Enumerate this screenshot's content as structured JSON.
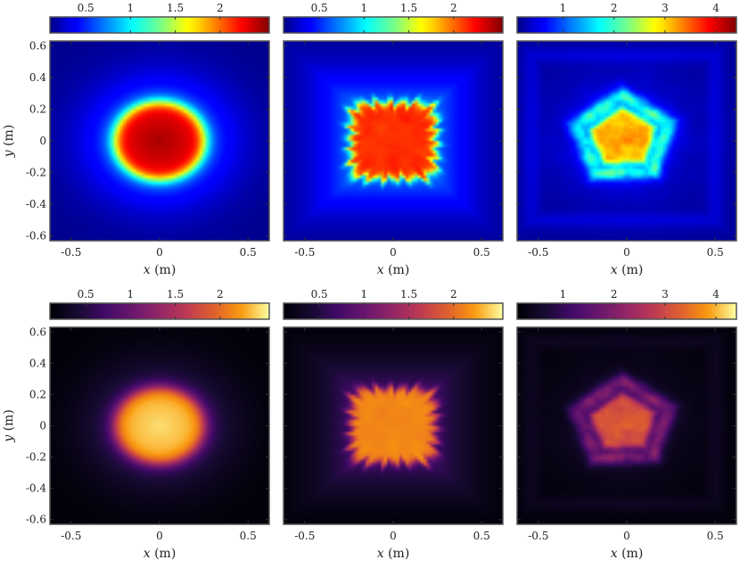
{
  "chart_data": [
    {
      "type": "heatmap",
      "colormap": "jet",
      "colorbar": {
        "min": 0.1,
        "max": 2.55,
        "ticks": [
          0.5,
          1,
          1.5,
          2
        ],
        "tick_labels": [
          "0.5",
          "1",
          "1.5",
          "2"
        ]
      },
      "xlabel": "x (m)",
      "ylabel": "y (m)",
      "xlim": [
        -0.62,
        0.62
      ],
      "ylim": [
        -0.63,
        0.63
      ],
      "xticks": [
        -0.5,
        0,
        0.5
      ],
      "xtick_labels": [
        "-0.5",
        "0",
        "0.5"
      ],
      "yticks": [
        -0.6,
        -0.4,
        -0.2,
        0,
        0.2,
        0.4,
        0.6
      ],
      "ytick_labels": [
        "-0.6",
        "-0.4",
        "-0.2",
        "0",
        "0.2",
        "0.4",
        "0.6"
      ],
      "field": {
        "shape": "round",
        "center": [
          0.0,
          0.0
        ],
        "radius": 0.25,
        "peak": 2.5,
        "background": 0.12
      }
    },
    {
      "type": "heatmap",
      "colormap": "jet",
      "colorbar": {
        "min": 0.1,
        "max": 2.55,
        "ticks": [
          0.5,
          1,
          1.5,
          2
        ],
        "tick_labels": [
          "0.5",
          "1",
          "1.5",
          "2"
        ]
      },
      "xlabel": "x (m)",
      "ylabel": "",
      "xlim": [
        -0.62,
        0.62
      ],
      "ylim": [
        -0.63,
        0.63
      ],
      "xticks": [
        -0.5,
        0,
        0.5
      ],
      "xtick_labels": [
        "-0.5",
        "0",
        "0.5"
      ],
      "field": {
        "shape": "wavy-square",
        "center": [
          0.0,
          0.0
        ],
        "radius": 0.24,
        "peak": 2.5,
        "background": 0.12
      }
    },
    {
      "type": "heatmap",
      "colormap": "jet",
      "colorbar": {
        "min": 0.1,
        "max": 4.4,
        "ticks": [
          1,
          2,
          3,
          4
        ],
        "tick_labels": [
          "1",
          "2",
          "3",
          "4"
        ]
      },
      "xlabel": "x (m)",
      "ylabel": "",
      "xlim": [
        -0.62,
        0.62
      ],
      "ylim": [
        -0.63,
        0.63
      ],
      "xticks": [
        -0.5,
        0,
        0.5
      ],
      "xtick_labels": [
        "-0.5",
        "0",
        "0.5"
      ],
      "field": {
        "shape": "pentagon-noisy",
        "center": [
          -0.02,
          0.02
        ],
        "radius": 0.2,
        "peak": 4.2,
        "background": 0.2
      }
    },
    {
      "type": "heatmap",
      "colormap": "inferno",
      "colorbar": {
        "min": 0.1,
        "max": 2.55,
        "ticks": [
          0.5,
          1,
          1.5,
          2
        ],
        "tick_labels": [
          "0.5",
          "1",
          "1.5",
          "2"
        ]
      },
      "xlabel": "x (m)",
      "ylabel": "y (m)",
      "xlim": [
        -0.62,
        0.62
      ],
      "ylim": [
        -0.63,
        0.63
      ],
      "xticks": [
        -0.5,
        0,
        0.5
      ],
      "xtick_labels": [
        "-0.5",
        "0",
        "0.5"
      ],
      "yticks": [
        -0.6,
        -0.4,
        -0.2,
        0,
        0.2,
        0.4,
        0.6
      ],
      "ytick_labels": [
        "-0.6",
        "-0.4",
        "-0.2",
        "0",
        "0.2",
        "0.4",
        "0.6"
      ],
      "field": {
        "shape": "round",
        "center": [
          0.0,
          0.0
        ],
        "radius": 0.25,
        "peak": 2.5,
        "background": 0.12
      }
    },
    {
      "type": "heatmap",
      "colormap": "inferno",
      "colorbar": {
        "min": 0.1,
        "max": 2.55,
        "ticks": [
          0.5,
          1,
          1.5,
          2
        ],
        "tick_labels": [
          "0.5",
          "1",
          "1.5",
          "2"
        ]
      },
      "xlabel": "x (m)",
      "ylabel": "",
      "xlim": [
        -0.62,
        0.62
      ],
      "ylim": [
        -0.63,
        0.63
      ],
      "xticks": [
        -0.5,
        0,
        0.5
      ],
      "xtick_labels": [
        "-0.5",
        "0",
        "0.5"
      ],
      "field": {
        "shape": "wavy-square",
        "center": [
          0.0,
          0.0
        ],
        "radius": 0.24,
        "peak": 2.5,
        "background": 0.12
      }
    },
    {
      "type": "heatmap",
      "colormap": "inferno",
      "colorbar": {
        "min": 0.1,
        "max": 4.4,
        "ticks": [
          1,
          2,
          3,
          4
        ],
        "tick_labels": [
          "1",
          "2",
          "3",
          "4"
        ]
      },
      "xlabel": "x (m)",
      "ylabel": "",
      "xlim": [
        -0.62,
        0.62
      ],
      "ylim": [
        -0.63,
        0.63
      ],
      "xticks": [
        -0.5,
        0,
        0.5
      ],
      "xtick_labels": [
        "-0.5",
        "0",
        "0.5"
      ],
      "field": {
        "shape": "pentagon-noisy",
        "center": [
          -0.02,
          0.02
        ],
        "radius": 0.2,
        "peak": 4.2,
        "background": 0.2
      }
    }
  ]
}
